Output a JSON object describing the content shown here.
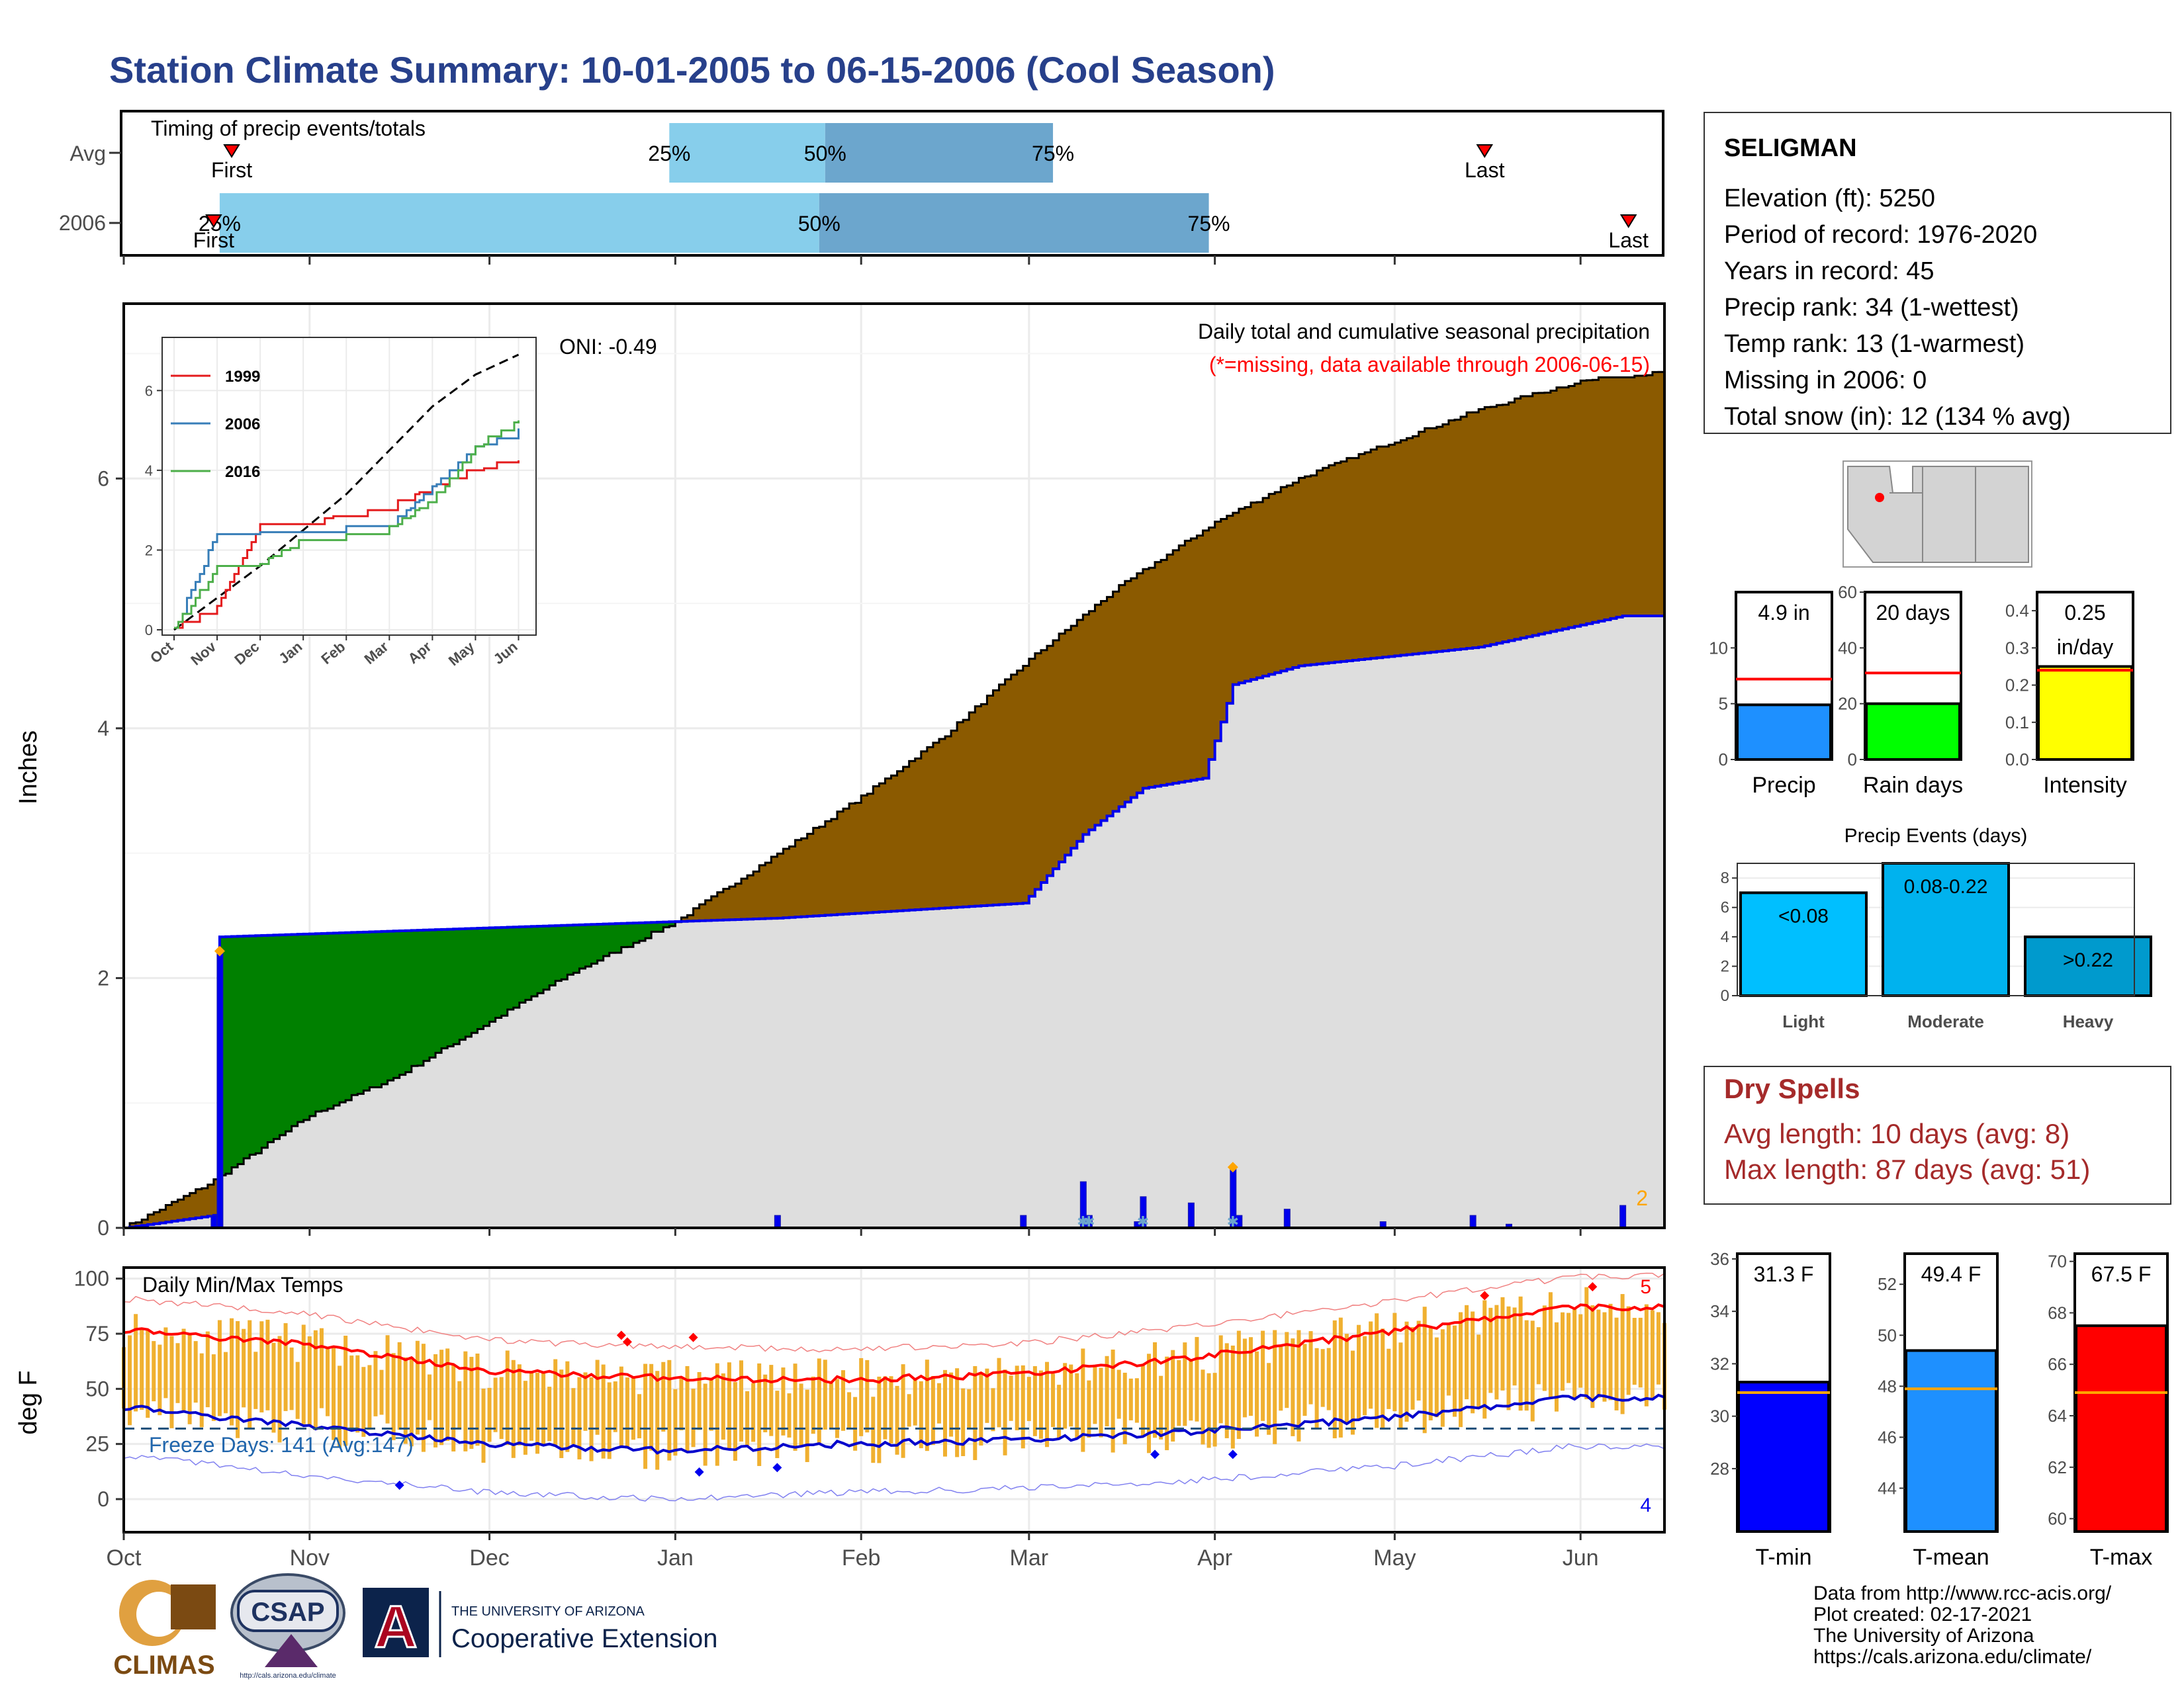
{
  "title": "Station Climate Summary: 10-01-2005 to 06-15-2006 (Cool Season)",
  "colors": {
    "title": "#27408B",
    "brown": "#8B5A00",
    "green": "#008000",
    "gray": "#DEDEDE",
    "blue": "#0000EE",
    "orange": "#FFA500",
    "gold": "#F0B030",
    "red": "#FF0000",
    "dry": "#A52A2A",
    "lightblue": "#87CEEB",
    "steelblue": "#6CA6CD"
  },
  "timing": {
    "title": "Timing of precip events/totals",
    "rows": [
      {
        "label": "Avg",
        "p25": "25%",
        "p50": "50%",
        "p75": "75%",
        "first": "First",
        "last": "Last"
      },
      {
        "label": "2006",
        "p25": "25%",
        "p50": "50%",
        "p75": "75%",
        "first": "First",
        "last": "Last"
      }
    ]
  },
  "station": {
    "name": "SELIGMAN",
    "lines": [
      "Elevation (ft): 5250",
      "Period of record: 1976-2020",
      "Years in record: 45",
      "Precip rank: 34 (1-wettest)",
      "Temp rank: 13 (1-warmest)",
      "Missing in 2006: 0",
      "Total snow (in): 12 (134 % avg)"
    ]
  },
  "precip_panel": {
    "title": "Daily total and cumulative seasonal precipitation",
    "subtitle": "(*=missing, data available through 2006-06-15)",
    "oni": "ONI: -0.49",
    "ylabel": "Inches",
    "yticks": [
      "0",
      "2",
      "4",
      "6"
    ],
    "count_label": "2"
  },
  "inset": {
    "legend": [
      "1999",
      "2006",
      "2016"
    ],
    "yticks": [
      "0",
      "2",
      "4",
      "6"
    ],
    "xticks": [
      "Oct",
      "Nov",
      "Dec",
      "Jan",
      "Feb",
      "Mar",
      "Apr",
      "May",
      "Jun"
    ]
  },
  "months": [
    "Oct",
    "Nov",
    "Dec",
    "Jan",
    "Feb",
    "Mar",
    "Apr",
    "May",
    "Jun"
  ],
  "temp_panel": {
    "title": "Daily Min/Max Temps",
    "ylabel": "deg F",
    "yticks": [
      "0",
      "25",
      "50",
      "75",
      "100"
    ],
    "freeze": "Freeze Days: 141 (Avg:147)",
    "high_count": "5",
    "low_count": "4"
  },
  "mini_bars": [
    {
      "label": "Precip",
      "value_text": "4.9 in",
      "yticks": [
        "0",
        "5",
        "10"
      ]
    },
    {
      "label": "Rain days",
      "value_text": "20 days",
      "yticks": [
        "0",
        "20",
        "40",
        "60"
      ]
    },
    {
      "label": "Intensity",
      "value_text": "0.25 in/day",
      "yticks": [
        "0.0",
        "0.1",
        "0.2",
        "0.3",
        "0.4"
      ]
    }
  ],
  "events": {
    "title": "Precip Events (days)",
    "categories": [
      "Light",
      "Moderate",
      "Heavy"
    ],
    "labels": [
      "<0.08",
      "0.08-0.22",
      ">0.22"
    ],
    "yticks": [
      "0",
      "2",
      "4",
      "6",
      "8"
    ]
  },
  "dry": {
    "title": "Dry Spells",
    "avg": "Avg length: 10 days (avg: 8)",
    "max": "Max length: 87 days (avg: 51)"
  },
  "temp_bars": [
    {
      "label": "T-min",
      "value_text": "31.3 F",
      "yticks": [
        "28",
        "30",
        "32",
        "34",
        "36"
      ]
    },
    {
      "label": "T-mean",
      "value_text": "49.4 F",
      "yticks": [
        "44",
        "46",
        "48",
        "50",
        "52"
      ]
    },
    {
      "label": "T-max",
      "value_text": "67.5 F",
      "yticks": [
        "60",
        "62",
        "64",
        "66",
        "68",
        "70"
      ]
    }
  ],
  "footer": [
    "Data from http://www.rcc-acis.org/",
    "Plot created: 02-17-2021",
    "The University of Arizona",
    "https://cals.arizona.edu/climate/"
  ],
  "logos": {
    "climas": "CLIMAS",
    "csap": "CSAP",
    "csap_url": "http://cals.arizona.edu/climate",
    "ua_top": "THE UNIVERSITY OF ARIZONA",
    "ua_bottom": "Cooperative Extension",
    "ua_letter": "A"
  },
  "chart_data": [
    {
      "type": "bar",
      "title": "Timing of precip events/totals",
      "categories": [
        "Avg",
        "2006"
      ],
      "series": [
        {
          "name": "25%",
          "values": [
            "2005-12-31",
            "2005-10-17"
          ]
        },
        {
          "name": "50%",
          "values": [
            "2006-01-26",
            "2006-01-25"
          ]
        },
        {
          "name": "75%",
          "values": [
            "2006-03-05",
            "2006-03-31"
          ]
        },
        {
          "name": "First",
          "values": [
            "2005-10-19",
            "2005-10-16"
          ]
        },
        {
          "name": "Last",
          "values": [
            "2006-05-16",
            "2006-06-09"
          ]
        }
      ]
    },
    {
      "type": "area",
      "title": "Daily total and cumulative seasonal precipitation",
      "ylabel": "Inches",
      "ylim": [
        0,
        7.4
      ],
      "xlim": [
        "2005-10-01",
        "2006-06-15"
      ],
      "series": [
        {
          "name": "avg cumulative",
          "x": [
            "2005-10-01",
            "2005-10-15",
            "2005-11-01",
            "2005-11-15",
            "2005-12-01",
            "2005-12-15",
            "2006-01-01",
            "2006-01-15",
            "2006-02-01",
            "2006-02-15",
            "2006-03-01",
            "2006-03-15",
            "2006-04-01",
            "2006-04-15",
            "2006-05-01",
            "2006-05-15",
            "2006-06-01",
            "2006-06-15"
          ],
          "values": [
            0,
            0.35,
            0.9,
            1.2,
            1.65,
            2.05,
            2.45,
            2.9,
            3.45,
            3.95,
            4.55,
            5.1,
            5.65,
            6.0,
            6.3,
            6.55,
            6.78,
            6.85
          ]
        },
        {
          "name": "2006 cumulative",
          "x": [
            "2005-10-01",
            "2005-10-16",
            "2005-10-17",
            "2006-01-18",
            "2006-02-28",
            "2006-03-10",
            "2006-03-20",
            "2006-03-30",
            "2006-04-04",
            "2006-04-15",
            "2006-05-15",
            "2006-06-08",
            "2006-06-15"
          ],
          "values": [
            0,
            0.1,
            2.33,
            2.48,
            2.6,
            3.15,
            3.52,
            3.6,
            4.35,
            4.5,
            4.65,
            4.9,
            4.9
          ]
        },
        {
          "name": "daily precip",
          "x": [
            "2005-10-16",
            "2005-10-17",
            "2006-01-18",
            "2006-02-28",
            "2006-03-10",
            "2006-03-11",
            "2006-03-19",
            "2006-03-20",
            "2006-03-28",
            "2006-04-04",
            "2006-04-05",
            "2006-04-13",
            "2006-04-29",
            "2006-05-14",
            "2006-05-20",
            "2006-06-08"
          ],
          "values": [
            0.1,
            2.2,
            0.1,
            0.1,
            0.37,
            0.1,
            0.05,
            0.25,
            0.2,
            0.47,
            0.1,
            0.15,
            0.05,
            0.1,
            0.03,
            0.18
          ]
        }
      ]
    },
    {
      "type": "line",
      "title": "",
      "ylim": [
        0,
        7.2
      ],
      "series": [
        {
          "name": "avg",
          "x": [
            "Oct",
            "Nov",
            "Dec",
            "Jan",
            "Feb",
            "Mar",
            "Apr",
            "May",
            "Jun"
          ],
          "values": [
            0,
            0.8,
            1.6,
            2.5,
            3.4,
            4.5,
            5.6,
            6.4,
            6.9
          ]
        },
        {
          "name": "1999",
          "x": [
            "Oct",
            "Nov",
            "Dec",
            "Jan",
            "Feb",
            "Mar",
            "Apr",
            "May",
            "Jun"
          ],
          "values": [
            0,
            0.5,
            2.6,
            2.6,
            2.8,
            3.0,
            3.5,
            4.0,
            4.2
          ]
        },
        {
          "name": "2006",
          "x": [
            "Oct",
            "Nov",
            "Dec",
            "Jan",
            "Feb",
            "Mar",
            "Apr",
            "May",
            "Jun"
          ],
          "values": [
            0,
            2.4,
            2.4,
            2.45,
            2.5,
            2.6,
            3.5,
            4.5,
            4.9
          ]
        },
        {
          "name": "2016",
          "x": [
            "Oct",
            "Nov",
            "Dec",
            "Jan",
            "Feb",
            "Mar",
            "Apr",
            "May",
            "Jun"
          ],
          "values": [
            0,
            1.5,
            1.6,
            2.2,
            2.3,
            2.5,
            3.2,
            4.5,
            5.2
          ]
        }
      ]
    },
    {
      "type": "line",
      "title": "Daily Min/Max Temps",
      "ylabel": "deg F",
      "ylim": [
        -15,
        105
      ],
      "series": [
        {
          "name": "avg max",
          "x": [
            "Oct",
            "Nov",
            "Dec",
            "Jan",
            "Feb",
            "Mar",
            "Apr",
            "May",
            "Jun"
          ],
          "values": [
            77,
            70,
            58,
            55,
            54,
            57,
            65,
            76,
            87
          ]
        },
        {
          "name": "avg min",
          "x": [
            "Oct",
            "Nov",
            "Dec",
            "Jan",
            "Feb",
            "Mar",
            "Apr",
            "May",
            "Jun"
          ],
          "values": [
            42,
            33,
            25,
            22,
            25,
            27,
            31,
            37,
            46
          ]
        },
        {
          "name": "freeze threshold",
          "x": [
            "Oct",
            "Jun"
          ],
          "values": [
            32,
            32
          ]
        }
      ]
    },
    {
      "type": "bar",
      "categories": [
        "Precip"
      ],
      "values": [
        4.9
      ],
      "reference": 7.2,
      "ylim": [
        0,
        15
      ]
    },
    {
      "type": "bar",
      "categories": [
        "Rain days"
      ],
      "values": [
        20
      ],
      "reference": 31,
      "ylim": [
        0,
        60
      ]
    },
    {
      "type": "bar",
      "categories": [
        "Intensity"
      ],
      "values": [
        0.25
      ],
      "reference": 0.24,
      "ylim": [
        0,
        0.45
      ]
    },
    {
      "type": "bar",
      "title": "Precip Events (days)",
      "categories": [
        "Light",
        "Moderate",
        "Heavy"
      ],
      "values": [
        7,
        9,
        4
      ],
      "ylim": [
        0,
        9
      ]
    },
    {
      "type": "bar",
      "categories": [
        "T-min"
      ],
      "values": [
        31.3
      ],
      "reference": 30.9,
      "ylim": [
        25.6,
        36.2
      ]
    },
    {
      "type": "bar",
      "categories": [
        "T-mean"
      ],
      "values": [
        49.4
      ],
      "reference": 47.9,
      "ylim": [
        42.3,
        53.2
      ]
    },
    {
      "type": "bar",
      "categories": [
        "T-max"
      ],
      "values": [
        67.5
      ],
      "reference": 64.9,
      "ylim": [
        59.5,
        70.3
      ]
    }
  ]
}
